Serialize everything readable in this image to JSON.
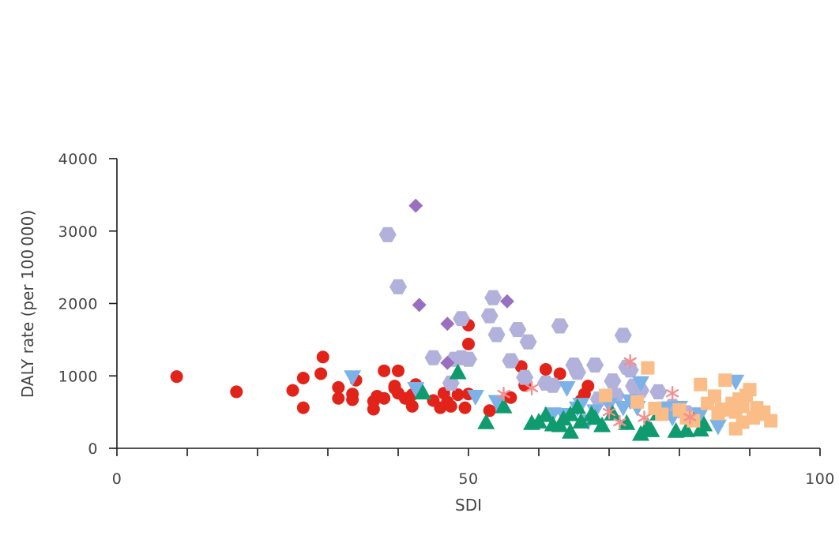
{
  "chart_data": {
    "type": "scatter",
    "title": "",
    "xlabel": "SDI",
    "ylabel": "DALY rate (per 100 000)",
    "xlim": [
      0,
      100
    ],
    "ylim": [
      0,
      4000
    ],
    "x_ticks": [
      0,
      10,
      20,
      30,
      40,
      50,
      60,
      70,
      80,
      90,
      100
    ],
    "x_tick_labels": [
      "0",
      "",
      "",
      "",
      "",
      "50",
      "",
      "",
      "",
      "",
      "100"
    ],
    "y_ticks": [
      0,
      1000,
      2000,
      3000,
      4000
    ],
    "y_tick_labels": [
      "0",
      "1000",
      "2000",
      "3000",
      "4000"
    ],
    "grid": false,
    "legend": "none",
    "series": [
      {
        "marker": "circle",
        "color": "#e2231a",
        "points": [
          [
            8.5,
            990
          ],
          [
            17,
            780
          ],
          [
            25,
            800
          ],
          [
            26.5,
            970
          ],
          [
            26.5,
            560
          ],
          [
            29,
            1030
          ],
          [
            29.3,
            1260
          ],
          [
            31.5,
            840
          ],
          [
            31.5,
            690
          ],
          [
            33.5,
            750
          ],
          [
            33.5,
            670
          ],
          [
            34,
            940
          ],
          [
            36.5,
            650
          ],
          [
            36.5,
            540
          ],
          [
            37,
            720
          ],
          [
            38,
            690
          ],
          [
            38,
            1070
          ],
          [
            39.5,
            830
          ],
          [
            39.5,
            860
          ],
          [
            40,
            1070
          ],
          [
            40,
            760
          ],
          [
            41,
            690
          ],
          [
            42,
            740
          ],
          [
            42,
            580
          ],
          [
            42.5,
            880
          ],
          [
            45,
            660
          ],
          [
            46,
            560
          ],
          [
            46.5,
            760
          ],
          [
            47,
            640
          ],
          [
            47.5,
            580
          ],
          [
            48.5,
            740
          ],
          [
            49.5,
            560
          ],
          [
            50,
            750
          ],
          [
            50,
            1700
          ],
          [
            50,
            1440
          ],
          [
            53,
            520
          ],
          [
            56,
            700
          ],
          [
            57.5,
            1130
          ],
          [
            58,
            870
          ],
          [
            61,
            1090
          ],
          [
            63,
            1030
          ],
          [
            66,
            660
          ],
          [
            66.5,
            750
          ],
          [
            67,
            860
          ]
        ]
      },
      {
        "marker": "hexagon",
        "color": "#b1b1dc",
        "points": [
          [
            38.5,
            2950
          ],
          [
            40,
            2230
          ],
          [
            45,
            1250
          ],
          [
            47.5,
            900
          ],
          [
            48,
            1230
          ],
          [
            49,
            1790
          ],
          [
            49,
            1250
          ],
          [
            50,
            1230
          ],
          [
            53,
            1830
          ],
          [
            53.5,
            2080
          ],
          [
            54,
            1570
          ],
          [
            56,
            1210
          ],
          [
            57,
            1640
          ],
          [
            58,
            980
          ],
          [
            58.5,
            1470
          ],
          [
            61,
            900
          ],
          [
            62,
            870
          ],
          [
            63,
            1690
          ],
          [
            65,
            1150
          ],
          [
            65.5,
            1050
          ],
          [
            68,
            1150
          ],
          [
            68.5,
            680
          ],
          [
            70,
            690
          ],
          [
            70.5,
            930
          ],
          [
            71,
            730
          ],
          [
            72,
            1560
          ],
          [
            72.5,
            1120
          ],
          [
            73,
            1080
          ],
          [
            73.5,
            860
          ],
          [
            74,
            780
          ],
          [
            74.5,
            800
          ],
          [
            77,
            780
          ],
          [
            78,
            540
          ],
          [
            79,
            580
          ],
          [
            80,
            520
          ],
          [
            81,
            490
          ]
        ]
      },
      {
        "marker": "diamond",
        "color": "#9b6fc0",
        "points": [
          [
            42.5,
            3350
          ],
          [
            43,
            1980
          ],
          [
            47,
            1720
          ],
          [
            47,
            1180
          ],
          [
            55.5,
            2030
          ]
        ]
      },
      {
        "marker": "triangle-down",
        "color": "#7cb2e8",
        "points": [
          [
            33.5,
            980
          ],
          [
            42.5,
            820
          ],
          [
            51,
            710
          ],
          [
            54,
            640
          ],
          [
            62,
            470
          ],
          [
            63.5,
            460
          ],
          [
            64,
            830
          ],
          [
            65.5,
            550
          ],
          [
            66,
            600
          ],
          [
            67,
            370
          ],
          [
            68,
            510
          ],
          [
            70,
            600
          ],
          [
            72,
            560
          ],
          [
            73,
            650
          ],
          [
            74,
            560
          ],
          [
            74.5,
            900
          ],
          [
            78,
            550
          ],
          [
            79,
            420
          ],
          [
            80,
            560
          ],
          [
            83,
            470
          ],
          [
            85.5,
            300
          ],
          [
            88,
            920
          ]
        ]
      },
      {
        "marker": "triangle-up",
        "color": "#0f9b6e",
        "points": [
          [
            43.5,
            770
          ],
          [
            48.5,
            1050
          ],
          [
            52.5,
            360
          ],
          [
            55,
            580
          ],
          [
            59,
            350
          ],
          [
            60,
            370
          ],
          [
            61,
            460
          ],
          [
            62,
            330
          ],
          [
            63,
            320
          ],
          [
            63.5,
            410
          ],
          [
            64.5,
            470
          ],
          [
            64.5,
            230
          ],
          [
            65.5,
            570
          ],
          [
            66,
            370
          ],
          [
            67.5,
            470
          ],
          [
            68,
            420
          ],
          [
            69,
            320
          ],
          [
            70.5,
            480
          ],
          [
            72.5,
            350
          ],
          [
            74.5,
            200
          ],
          [
            75.5,
            310
          ],
          [
            76,
            250
          ],
          [
            77,
            480
          ],
          [
            79.5,
            240
          ],
          [
            81,
            250
          ],
          [
            82,
            390
          ],
          [
            83,
            260
          ],
          [
            83.5,
            330
          ]
        ]
      },
      {
        "marker": "square",
        "color": "#fbbd87",
        "points": [
          [
            69.5,
            730
          ],
          [
            74,
            640
          ],
          [
            75.5,
            1110
          ],
          [
            76.5,
            550
          ],
          [
            77.5,
            470
          ],
          [
            80,
            530
          ],
          [
            81,
            420
          ],
          [
            82,
            380
          ],
          [
            83,
            880
          ],
          [
            84,
            620
          ],
          [
            85,
            720
          ],
          [
            85.5,
            480
          ],
          [
            86,
            540
          ],
          [
            86.5,
            940
          ],
          [
            87,
            530
          ],
          [
            87.5,
            620
          ],
          [
            88,
            500
          ],
          [
            88,
            270
          ],
          [
            88.5,
            680
          ],
          [
            89,
            360
          ],
          [
            89,
            580
          ],
          [
            89.5,
            730
          ],
          [
            90,
            810
          ],
          [
            90.5,
            420
          ],
          [
            91,
            560
          ],
          [
            91.5,
            470
          ],
          [
            92,
            500
          ],
          [
            93,
            380
          ]
        ]
      },
      {
        "marker": "asterisk",
        "color": "#f48f8f",
        "points": [
          [
            55,
            750
          ],
          [
            59,
            830
          ],
          [
            70,
            500
          ],
          [
            71.5,
            360
          ],
          [
            73,
            1200
          ],
          [
            75,
            420
          ],
          [
            79,
            760
          ],
          [
            81.5,
            430
          ]
        ]
      }
    ]
  }
}
